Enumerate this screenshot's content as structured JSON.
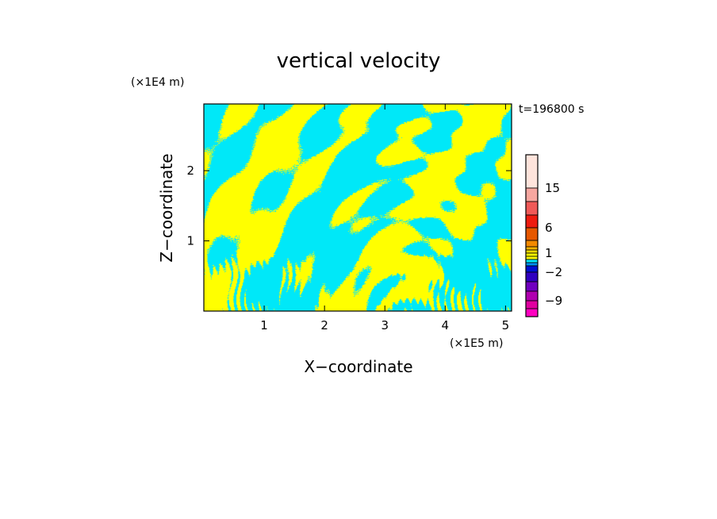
{
  "chart_data": {
    "type": "heatmap",
    "title": "vertical velocity",
    "time_label": "t=196800 s",
    "xlabel": "X−coordinate",
    "ylabel": "Z−coordinate",
    "x_scale_label": "(×1E5 m)",
    "y_scale_label": "(×1E4 m)",
    "xlim": [
      0,
      5.1
    ],
    "ylim": [
      0,
      2.95
    ],
    "x_ticks": [
      1,
      2,
      3,
      4,
      5
    ],
    "y_ticks": [
      1,
      2
    ],
    "x_tick_labels": [
      "1",
      "2",
      "3",
      "4",
      "5"
    ],
    "y_tick_labels": [
      "1",
      "2"
    ],
    "field_colors": {
      "negative": "#00e8f8",
      "positive": "#ffff00"
    },
    "colorbar": {
      "tick_labels": [
        "15",
        "6",
        "1",
        "−2",
        "−9"
      ],
      "tick_levels": [
        15,
        6,
        1,
        -2,
        -9
      ],
      "bands": [
        {
          "top": 999,
          "bottom": 15,
          "color": "#ffe4dc"
        },
        {
          "top": 15,
          "bottom": 10,
          "color": "#f7a7a0"
        },
        {
          "top": 10,
          "bottom": 8,
          "color": "#f05a58"
        },
        {
          "top": 8,
          "bottom": 6,
          "color": "#ee1c10"
        },
        {
          "top": 6,
          "bottom": 4,
          "color": "#e65800"
        },
        {
          "top": 4,
          "bottom": 2,
          "color": "#f48a00"
        },
        {
          "top": 2,
          "bottom": 1.5,
          "color": "#ffb400"
        },
        {
          "top": 1.5,
          "bottom": 1,
          "color": "#f0d800"
        },
        {
          "top": 1,
          "bottom": 0.5,
          "color": "#ffff00"
        },
        {
          "top": 0.5,
          "bottom": 0,
          "color": "#f8f800"
        },
        {
          "top": 0,
          "bottom": -0.5,
          "color": "#00e8f8"
        },
        {
          "top": -0.5,
          "bottom": -1,
          "color": "#0090f0"
        },
        {
          "top": -1,
          "bottom": -2,
          "color": "#0010d0"
        },
        {
          "top": -2,
          "bottom": -4,
          "color": "#3000c0"
        },
        {
          "top": -4,
          "bottom": -6,
          "color": "#7000c0"
        },
        {
          "top": -6,
          "bottom": -9,
          "color": "#b000b0"
        },
        {
          "top": -9,
          "bottom": -12,
          "color": "#e000a0"
        },
        {
          "top": -12,
          "bottom": -999,
          "color": "#ff00c0"
        }
      ]
    }
  }
}
